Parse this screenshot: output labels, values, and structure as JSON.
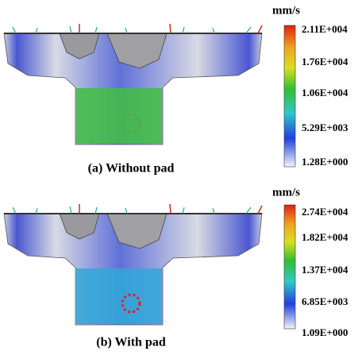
{
  "panels": [
    {
      "unit": "mm/s",
      "legend": [
        "2.11E+004",
        "1.76E+004",
        "1.06E+004",
        "5.29E+003",
        "1.28E+000"
      ],
      "caption": "(a) Without pad"
    },
    {
      "unit": "mm/s",
      "legend": [
        "2.74E+004",
        "1.82E+004",
        "1.37E+004",
        "6.85E+003",
        "1.09E+000"
      ],
      "caption": "(b) With pad"
    }
  ]
}
